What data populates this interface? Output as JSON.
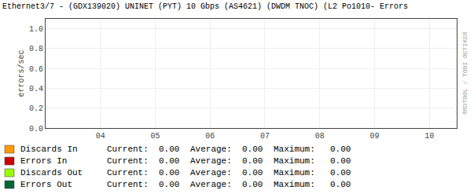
{
  "chart_data": {
    "type": "line",
    "title": "Ethernet3/7 - (GDX139020) UNINET (PYT) 10 Gbps (AS4621) (DWDM TNOC) (L2 Po1010- Errors",
    "ylabel": "errors/sec",
    "x": [],
    "series": [
      {
        "name": "Discards In",
        "color": "#ff9900",
        "values": [],
        "stats": [
          "0.00",
          "0.00",
          "0.00"
        ]
      },
      {
        "name": "Errors In",
        "color": "#cc0000",
        "values": [],
        "stats": [
          "0.00",
          "0.00",
          "0.00"
        ]
      },
      {
        "name": "Discards Out",
        "color": "#99ff00",
        "values": [],
        "stats": [
          "0.00",
          "0.00",
          "0.00"
        ]
      },
      {
        "name": "Errors Out",
        "color": "#006633",
        "values": [],
        "stats": [
          "0.00",
          "0.00",
          "0.00"
        ]
      }
    ],
    "stat_labels": [
      "Current:",
      "Average:",
      "Maximum:"
    ],
    "xlim": [
      3.0,
      10.5
    ],
    "xticks": [
      {
        "value": 4,
        "label": "04"
      },
      {
        "value": 5,
        "label": "05"
      },
      {
        "value": 6,
        "label": "06"
      },
      {
        "value": 7,
        "label": "07"
      },
      {
        "value": 8,
        "label": "08"
      },
      {
        "value": 9,
        "label": "09"
      },
      {
        "value": 10,
        "label": "10"
      }
    ],
    "ylim": [
      0.0,
      1.1
    ],
    "yticks": [
      {
        "value": 0.0,
        "label": "0.0"
      },
      0.2,
      0.4,
      0.6,
      0.8,
      {
        "value": 1.0,
        "label": "1.0"
      }
    ],
    "grid": true,
    "legend": "bottom",
    "annotations": [
      "RRDTOOL / TOBI OETIKER"
    ]
  }
}
